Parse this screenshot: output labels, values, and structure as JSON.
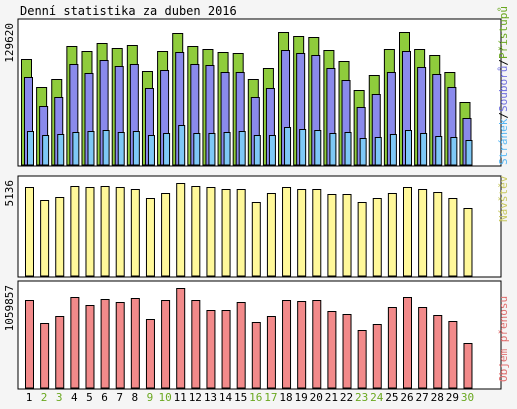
{
  "title": "Denní statistika za duben 2016",
  "colors": {
    "page_bg": "#f5f5f5",
    "panel_bg": "#ffffff",
    "border": "#000000",
    "hits": "#8fcc3c",
    "files": "#8a8aec",
    "pages": "#7ec8f6",
    "visits": "#fff89a",
    "volume": "#f28a8a",
    "day_weekday": "#000000",
    "day_weekend": "#6aa820"
  },
  "legend": {
    "top": [
      {
        "text": "Stránek",
        "color": "#58b8f4"
      },
      {
        "text": "/",
        "color": "#000000"
      },
      {
        "text": "Souborů",
        "color": "#7070e0"
      },
      {
        "text": "/",
        "color": "#000000"
      },
      {
        "text": "Přístupů",
        "color": "#6aa820"
      }
    ],
    "middle": "Návštěv",
    "bottom": "Objem přenosu",
    "middle_color": "#c8c860",
    "bottom_color": "#e07070"
  },
  "chart_data": {
    "type": "bar",
    "title": "Denní statistika za duben 2016",
    "categories": [
      "1",
      "2",
      "3",
      "4",
      "5",
      "6",
      "7",
      "8",
      "9",
      "10",
      "11",
      "12",
      "13",
      "14",
      "15",
      "16",
      "17",
      "18",
      "19",
      "20",
      "21",
      "22",
      "23",
      "24",
      "25",
      "26",
      "27",
      "28",
      "29",
      "30"
    ],
    "weekend_days": [
      "2",
      "3",
      "9",
      "10",
      "16",
      "17",
      "23",
      "24",
      "30"
    ],
    "panels": [
      {
        "name": "traffic",
        "ymax": 129620,
        "ymax_label": "129620",
        "series": [
          {
            "name": "Přístupů",
            "values": [
              99000,
              73000,
              80000,
              111000,
              106000,
              114000,
              109000,
              112000,
              88000,
              106000,
              123000,
              111000,
              108000,
              105000,
              104000,
              80000,
              90000,
              124000,
              120000,
              119000,
              107000,
              97000,
              70000,
              84000,
              108000,
              124000,
              108000,
              103000,
              87000,
              59000
            ]
          },
          {
            "name": "Souborů",
            "values": [
              82000,
              55000,
              63000,
              94000,
              86000,
              98000,
              92000,
              94000,
              72000,
              89000,
              105000,
              94000,
              93000,
              87000,
              87000,
              63000,
              72000,
              107000,
              104000,
              103000,
              90000,
              79000,
              54000,
              66000,
              87000,
              106000,
              91000,
              85000,
              73000,
              44000
            ]
          },
          {
            "name": "Stránek",
            "values": [
              32000,
              28000,
              29000,
              31000,
              32000,
              33000,
              31000,
              32000,
              28000,
              30000,
              37000,
              30000,
              30000,
              31000,
              32000,
              28000,
              28000,
              35000,
              34000,
              33000,
              30000,
              31000,
              25000,
              26000,
              29000,
              33000,
              30000,
              27000,
              26000,
              23000
            ]
          }
        ]
      },
      {
        "name": "visits",
        "ymax": 5136,
        "ymax_label": "5136",
        "series": [
          {
            "name": "Návštěv",
            "values": [
              4900,
              4170,
              4390,
              4960,
              4900,
              4960,
              4900,
              4820,
              4320,
              4610,
              5136,
              4960,
              4890,
              4820,
              4800,
              4100,
              4610,
              4900,
              4820,
              4820,
              4540,
              4540,
              4100,
              4320,
              4600,
              4900,
              4820,
              4620,
              4320,
              3780
            ]
          }
        ]
      },
      {
        "name": "volume",
        "ymax": 1059857,
        "ymax_label": "1059857",
        "series": [
          {
            "name": "Objem přenosu",
            "values": [
              930000,
              690000,
              760000,
              960000,
              880000,
              945000,
              910000,
              955000,
              730000,
              930000,
              1059857,
              930000,
              830000,
              830000,
              915000,
              700000,
              760000,
              930000,
              920000,
              930000,
              820000,
              780000,
              610000,
              680000,
              860000,
              960000,
              860000,
              770000,
              710000,
              480000
            ]
          }
        ]
      }
    ]
  }
}
